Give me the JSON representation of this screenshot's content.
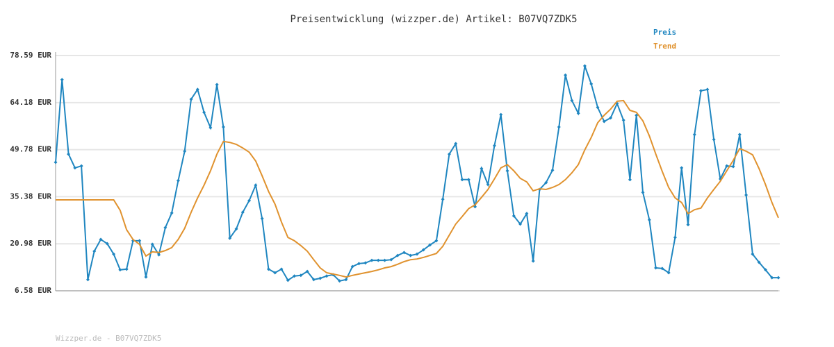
{
  "chart_data": {
    "type": "line",
    "title": "Preisentwicklung (wizzper.de) Artikel: B07VQ7ZDK5",
    "footer": "Wizzper.de - B07VQ7ZDK5",
    "ylim": [
      6.58,
      78.59
    ],
    "yticks": [
      {
        "value": 6.58,
        "label": "6.58 EUR"
      },
      {
        "value": 20.98,
        "label": "20.98 EUR"
      },
      {
        "value": 35.38,
        "label": "35.38 EUR"
      },
      {
        "value": 49.78,
        "label": "49.78 EUR"
      },
      {
        "value": 64.18,
        "label": "64.18 EUR"
      },
      {
        "value": 78.59,
        "label": "78.59 EUR"
      }
    ],
    "grid": true,
    "legend": "top-right",
    "series": [
      {
        "name": "Preis",
        "color": "#1f86c0",
        "markers": true,
        "values": [
          45.9,
          71.2,
          48.4,
          44.2,
          44.8,
          10.0,
          18.7,
          22.3,
          21.0,
          17.8,
          13.0,
          13.2,
          21.9,
          21.9,
          10.8,
          20.8,
          17.6,
          25.9,
          30.4,
          40.3,
          49.3,
          65.2,
          68.2,
          61.2,
          56.5,
          69.7,
          56.7,
          22.7,
          25.5,
          30.6,
          34.2,
          38.9,
          28.7,
          13.2,
          12.1,
          13.2,
          9.8,
          11.1,
          11.3,
          12.5,
          10.0,
          10.4,
          11.1,
          11.5,
          9.6,
          10.0,
          14.0,
          14.9,
          15.1,
          15.9,
          15.9,
          15.9,
          16.1,
          17.4,
          18.3,
          17.4,
          17.8,
          19.1,
          20.6,
          21.9,
          34.6,
          48.4,
          51.6,
          40.6,
          40.6,
          32.3,
          44.0,
          39.1,
          51.0,
          60.5,
          43.3,
          29.5,
          27.0,
          30.2,
          15.7,
          37.6,
          39.7,
          43.5,
          56.7,
          72.6,
          64.8,
          60.9,
          75.4,
          69.9,
          62.7,
          58.4,
          59.5,
          63.9,
          58.8,
          40.6,
          60.3,
          36.7,
          28.3,
          13.6,
          13.4,
          12.1,
          22.9,
          44.2,
          26.8,
          54.4,
          67.8,
          68.2,
          52.9,
          40.8,
          44.8,
          44.6,
          54.4,
          35.9,
          17.8,
          15.3,
          13.0,
          10.6,
          10.6
        ]
      },
      {
        "name": "Trend",
        "color": "#e0922e",
        "markers": false,
        "values": [
          34.4,
          34.4,
          34.4,
          34.4,
          34.4,
          34.4,
          34.4,
          34.4,
          34.4,
          34.4,
          31.2,
          25.3,
          22.3,
          20.8,
          17.2,
          18.5,
          18.3,
          18.9,
          19.8,
          22.3,
          25.7,
          30.6,
          35.0,
          38.9,
          43.3,
          48.4,
          52.3,
          52.0,
          51.4,
          50.3,
          49.0,
          46.3,
          41.8,
          37.0,
          33.1,
          27.6,
          22.9,
          21.9,
          20.4,
          18.7,
          16.1,
          13.6,
          12.1,
          11.7,
          11.3,
          10.8,
          11.3,
          11.7,
          12.1,
          12.5,
          13.0,
          13.6,
          14.0,
          14.7,
          15.5,
          16.1,
          16.3,
          16.8,
          17.4,
          18.0,
          20.2,
          23.6,
          27.0,
          29.3,
          31.7,
          32.9,
          35.2,
          37.6,
          40.8,
          44.2,
          45.2,
          43.3,
          41.0,
          39.9,
          37.2,
          37.8,
          37.6,
          38.2,
          39.1,
          40.6,
          42.7,
          45.2,
          49.7,
          53.5,
          58.0,
          60.3,
          62.2,
          64.6,
          64.8,
          61.8,
          61.2,
          58.6,
          54.0,
          48.4,
          43.1,
          38.2,
          35.0,
          33.6,
          30.2,
          31.4,
          31.9,
          35.0,
          37.6,
          40.1,
          43.3,
          46.5,
          50.1,
          49.3,
          48.2,
          44.0,
          39.1,
          33.6,
          28.9
        ]
      }
    ]
  }
}
